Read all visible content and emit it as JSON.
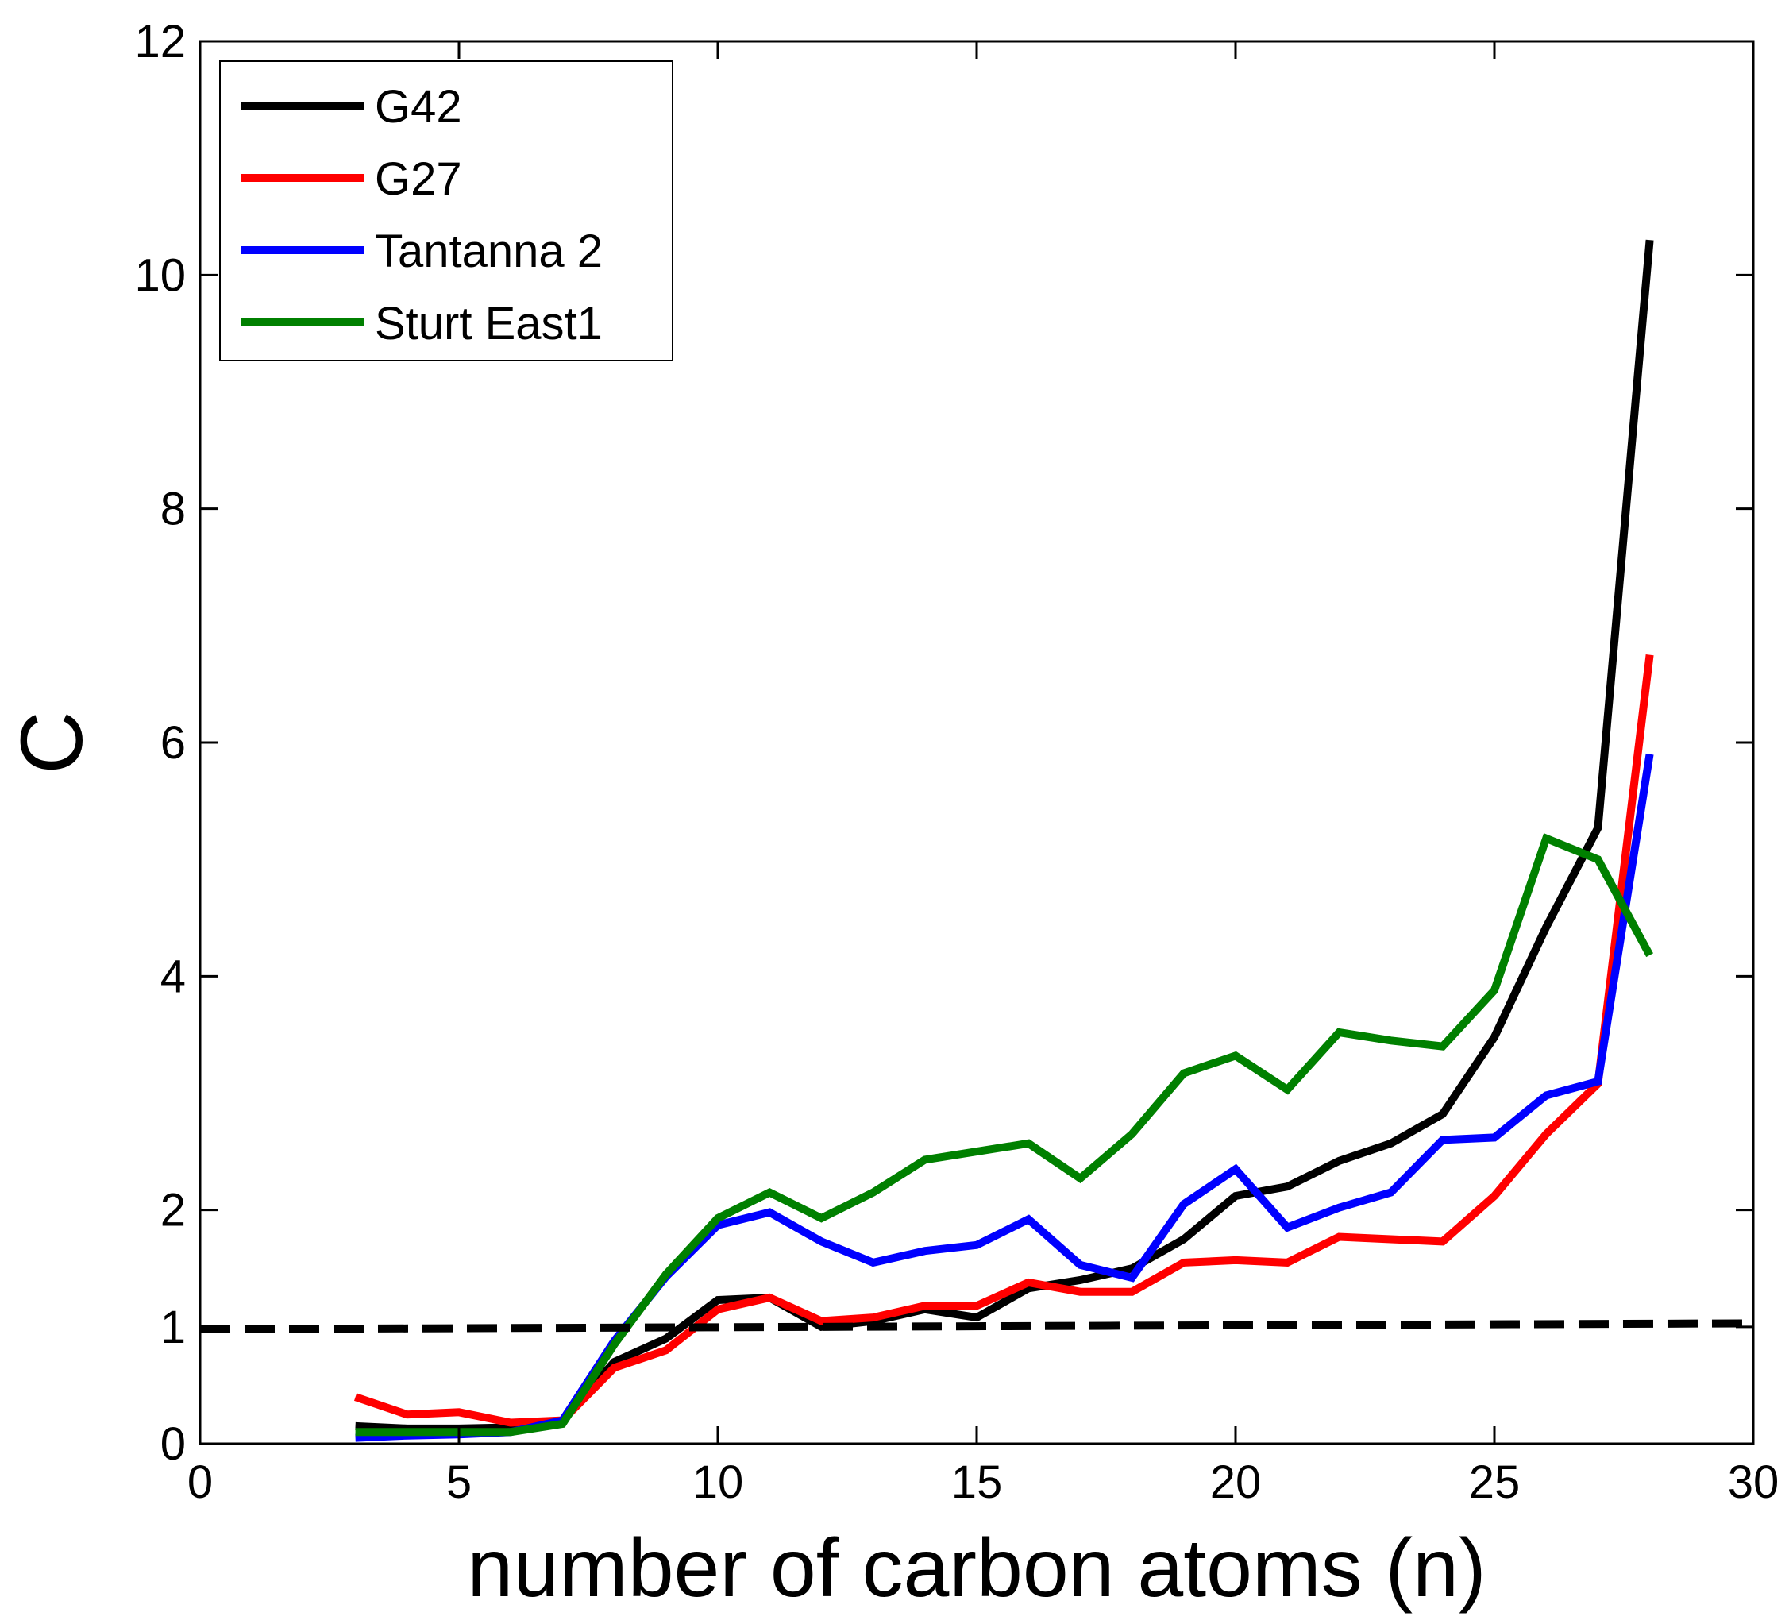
{
  "chart_data": {
    "type": "line",
    "title": "",
    "xlabel": "number of carbon atoms (n)",
    "ylabel": "C",
    "xlim": [
      0,
      30
    ],
    "ylim": [
      0,
      12
    ],
    "xticks": [
      0,
      5,
      10,
      15,
      20,
      25,
      30
    ],
    "xtick_labels": [
      "0",
      "5",
      "10",
      "15",
      "20",
      "25",
      "30"
    ],
    "yticks": [
      0,
      1,
      2,
      4,
      6,
      8,
      10,
      12
    ],
    "ytick_labels": [
      "0",
      "1",
      "2",
      "4",
      "6",
      "8",
      "10",
      "12"
    ],
    "grid": false,
    "legend_position": "top-left",
    "x": [
      3,
      4,
      5,
      6,
      7,
      8,
      9,
      10,
      11,
      12,
      13,
      14,
      15,
      16,
      17,
      18,
      19,
      20,
      21,
      22,
      23,
      24,
      25,
      26,
      27,
      28
    ],
    "series": [
      {
        "name": "G42",
        "color": "#000000",
        "values": [
          0.15,
          0.13,
          0.13,
          0.14,
          0.2,
          0.7,
          0.9,
          1.23,
          1.25,
          1.0,
          1.05,
          1.15,
          1.08,
          1.33,
          1.4,
          1.5,
          1.75,
          2.12,
          2.2,
          2.42,
          2.57,
          2.82,
          3.48,
          4.42,
          5.27,
          10.3
        ]
      },
      {
        "name": "G27",
        "color": "#ff0000",
        "values": [
          0.4,
          0.25,
          0.27,
          0.18,
          0.2,
          0.65,
          0.8,
          1.15,
          1.25,
          1.05,
          1.08,
          1.18,
          1.18,
          1.38,
          1.3,
          1.3,
          1.55,
          1.57,
          1.55,
          1.77,
          1.75,
          1.73,
          2.12,
          2.65,
          3.08,
          6.75
        ]
      },
      {
        "name": "Tantanna 2",
        "color": "#0000ff",
        "values": [
          0.05,
          0.07,
          0.08,
          0.1,
          0.2,
          0.88,
          1.43,
          1.87,
          1.98,
          1.73,
          1.55,
          1.65,
          1.7,
          1.92,
          1.53,
          1.42,
          2.05,
          2.35,
          1.85,
          2.02,
          2.15,
          2.6,
          2.62,
          2.98,
          3.1,
          5.9
        ]
      },
      {
        "name": "Sturt East1",
        "color": "#008000",
        "values": [
          0.1,
          0.1,
          0.1,
          0.1,
          0.17,
          0.85,
          1.45,
          1.93,
          2.15,
          1.93,
          2.15,
          2.43,
          2.5,
          2.57,
          2.27,
          2.65,
          3.17,
          3.32,
          3.03,
          3.52,
          3.45,
          3.4,
          3.88,
          5.18,
          5.0,
          4.18
        ]
      }
    ],
    "reference_line": {
      "name": "C = 1",
      "style": "dashed",
      "color": "#000000",
      "x": [
        0,
        30
      ],
      "y": [
        0.98,
        1.03
      ]
    }
  }
}
